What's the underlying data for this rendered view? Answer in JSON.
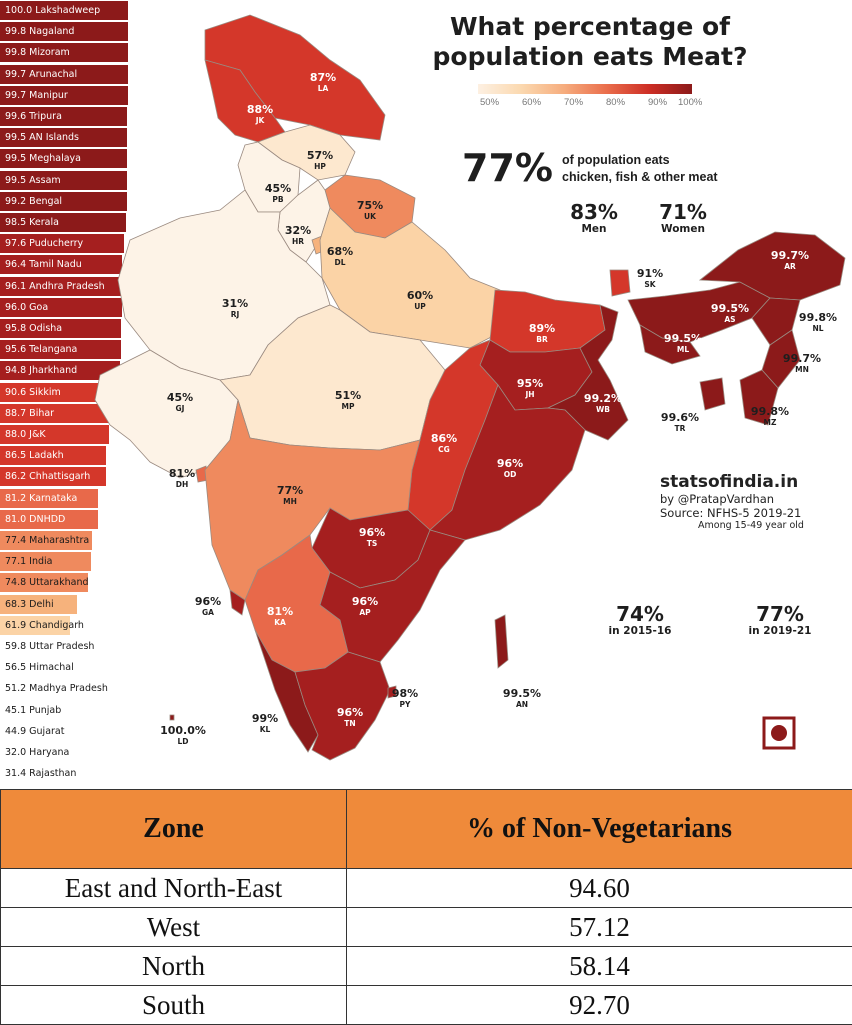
{
  "title_line1": "What percentage of",
  "title_line2": "population eats Meat?",
  "legend": {
    "ticks": [
      "50%",
      "60%",
      "70%",
      "80%",
      "90%",
      "100%"
    ],
    "colors": [
      "#fdf0e2",
      "#fbd9b0",
      "#f6ad7e",
      "#ea6e4c",
      "#cd2e25",
      "#8c1a1a"
    ]
  },
  "headline": {
    "value": "77%",
    "desc_line1": "of population eats",
    "desc_line2": "chicken, fish & other meat"
  },
  "men": {
    "value": "83%",
    "label": "Men"
  },
  "women": {
    "value": "71%",
    "label": "Women"
  },
  "year_2015": {
    "value": "74%",
    "label": "in 2015-16"
  },
  "year_2019": {
    "value": "77%",
    "label": "in 2019-21"
  },
  "credit": {
    "site": "statsofindia.in",
    "author": "by @PratapVardhan",
    "source": "Source: NFHS-5 2019-21",
    "note": "Among 15-49 year old"
  },
  "ranking": [
    {
      "value": 100.0,
      "label": "100.0 Lakshadweep"
    },
    {
      "value": 99.8,
      "label": "99.8 Nagaland"
    },
    {
      "value": 99.8,
      "label": "99.8 Mizoram"
    },
    {
      "value": 99.7,
      "label": "99.7 Arunachal"
    },
    {
      "value": 99.7,
      "label": "99.7 Manipur"
    },
    {
      "value": 99.6,
      "label": "99.6 Tripura"
    },
    {
      "value": 99.5,
      "label": "99.5 AN Islands"
    },
    {
      "value": 99.5,
      "label": "99.5 Meghalaya"
    },
    {
      "value": 99.5,
      "label": "99.5 Assam"
    },
    {
      "value": 99.2,
      "label": "99.2 Bengal"
    },
    {
      "value": 98.5,
      "label": "98.5 Kerala"
    },
    {
      "value": 97.6,
      "label": "97.6 Puducherry"
    },
    {
      "value": 96.4,
      "label": "96.4 Tamil Nadu"
    },
    {
      "value": 96.1,
      "label": "96.1 Andhra Pradesh"
    },
    {
      "value": 96.0,
      "label": "96.0 Goa"
    },
    {
      "value": 95.8,
      "label": "95.8 Odisha"
    },
    {
      "value": 95.6,
      "label": "95.6 Telangana"
    },
    {
      "value": 94.8,
      "label": "94.8 Jharkhand"
    },
    {
      "value": 90.6,
      "label": "90.6 Sikkim"
    },
    {
      "value": 88.7,
      "label": "88.7 Bihar"
    },
    {
      "value": 88.0,
      "label": "88.0 J&K"
    },
    {
      "value": 86.5,
      "label": "86.5 Ladakh"
    },
    {
      "value": 86.2,
      "label": "86.2 Chhattisgarh"
    },
    {
      "value": 81.2,
      "label": "81.2 Karnataka"
    },
    {
      "value": 81.0,
      "label": "81.0 DNHDD"
    },
    {
      "value": 77.4,
      "label": "77.4 Maharashtra"
    },
    {
      "value": 77.1,
      "label": "77.1 India"
    },
    {
      "value": 74.8,
      "label": "74.8 Uttarakhand"
    },
    {
      "value": 68.3,
      "label": "68.3 Delhi"
    },
    {
      "value": 61.9,
      "label": "61.9 Chandigarh"
    },
    {
      "value": 59.8,
      "label": "59.8 Uttar Pradesh"
    },
    {
      "value": 56.5,
      "label": "56.5 Himachal"
    },
    {
      "value": 51.2,
      "label": "51.2 Madhya Pradesh"
    },
    {
      "value": 45.1,
      "label": "45.1 Punjab"
    },
    {
      "value": 44.9,
      "label": "44.9 Gujarat"
    },
    {
      "value": 32.0,
      "label": "32.0 Haryana"
    },
    {
      "value": 31.4,
      "label": "31.4 Rajasthan"
    }
  ],
  "map_labels": [
    {
      "code": "LA",
      "pct": "87%",
      "tone": "light"
    },
    {
      "code": "JK",
      "pct": "88%",
      "tone": "light"
    },
    {
      "code": "HP",
      "pct": "57%",
      "tone": "dark"
    },
    {
      "code": "PB",
      "pct": "45%",
      "tone": "dark"
    },
    {
      "code": "UK",
      "pct": "75%",
      "tone": "dark"
    },
    {
      "code": "HR",
      "pct": "32%",
      "tone": "dark"
    },
    {
      "code": "DL",
      "pct": "68%",
      "tone": "dark"
    },
    {
      "code": "RJ",
      "pct": "31%",
      "tone": "dark"
    },
    {
      "code": "UP",
      "pct": "60%",
      "tone": "dark"
    },
    {
      "code": "SK",
      "pct": "91%",
      "tone": "dark"
    },
    {
      "code": "AR",
      "pct": "99.7%",
      "tone": "light"
    },
    {
      "code": "AS",
      "pct": "99.5%",
      "tone": "light"
    },
    {
      "code": "NL",
      "pct": "99.8%",
      "tone": "dark"
    },
    {
      "code": "ML",
      "pct": "99.5%",
      "tone": "light"
    },
    {
      "code": "MN",
      "pct": "99.7%",
      "tone": "dark"
    },
    {
      "code": "BR",
      "pct": "89%",
      "tone": "light"
    },
    {
      "code": "JH",
      "pct": "95%",
      "tone": "light"
    },
    {
      "code": "WB",
      "pct": "99.2%",
      "tone": "light"
    },
    {
      "code": "TR",
      "pct": "99.6%",
      "tone": "dark"
    },
    {
      "code": "MZ",
      "pct": "99.8%",
      "tone": "dark"
    },
    {
      "code": "GJ",
      "pct": "45%",
      "tone": "dark"
    },
    {
      "code": "MP",
      "pct": "51%",
      "tone": "dark"
    },
    {
      "code": "CG",
      "pct": "86%",
      "tone": "light"
    },
    {
      "code": "OD",
      "pct": "96%",
      "tone": "light"
    },
    {
      "code": "DH",
      "pct": "81%",
      "tone": "dark"
    },
    {
      "code": "MH",
      "pct": "77%",
      "tone": "dark"
    },
    {
      "code": "TS",
      "pct": "96%",
      "tone": "light"
    },
    {
      "code": "GA",
      "pct": "96%",
      "tone": "dark"
    },
    {
      "code": "KA",
      "pct": "81%",
      "tone": "light"
    },
    {
      "code": "AP",
      "pct": "96%",
      "tone": "light"
    },
    {
      "code": "PY",
      "pct": "98%",
      "tone": "dark"
    },
    {
      "code": "AN",
      "pct": "99.5%",
      "tone": "dark"
    },
    {
      "code": "KL",
      "pct": "99%",
      "tone": "dark"
    },
    {
      "code": "TN",
      "pct": "96%",
      "tone": "light"
    },
    {
      "code": "LD",
      "pct": "100.0%",
      "tone": "dark"
    }
  ],
  "zone_table": {
    "headers": [
      "Zone",
      "% of Non-Vegetarians"
    ],
    "rows": [
      [
        "East and North-East",
        "94.60"
      ],
      [
        "West",
        "57.12"
      ],
      [
        "North",
        "58.14"
      ],
      [
        "South",
        "92.70"
      ]
    ]
  }
}
